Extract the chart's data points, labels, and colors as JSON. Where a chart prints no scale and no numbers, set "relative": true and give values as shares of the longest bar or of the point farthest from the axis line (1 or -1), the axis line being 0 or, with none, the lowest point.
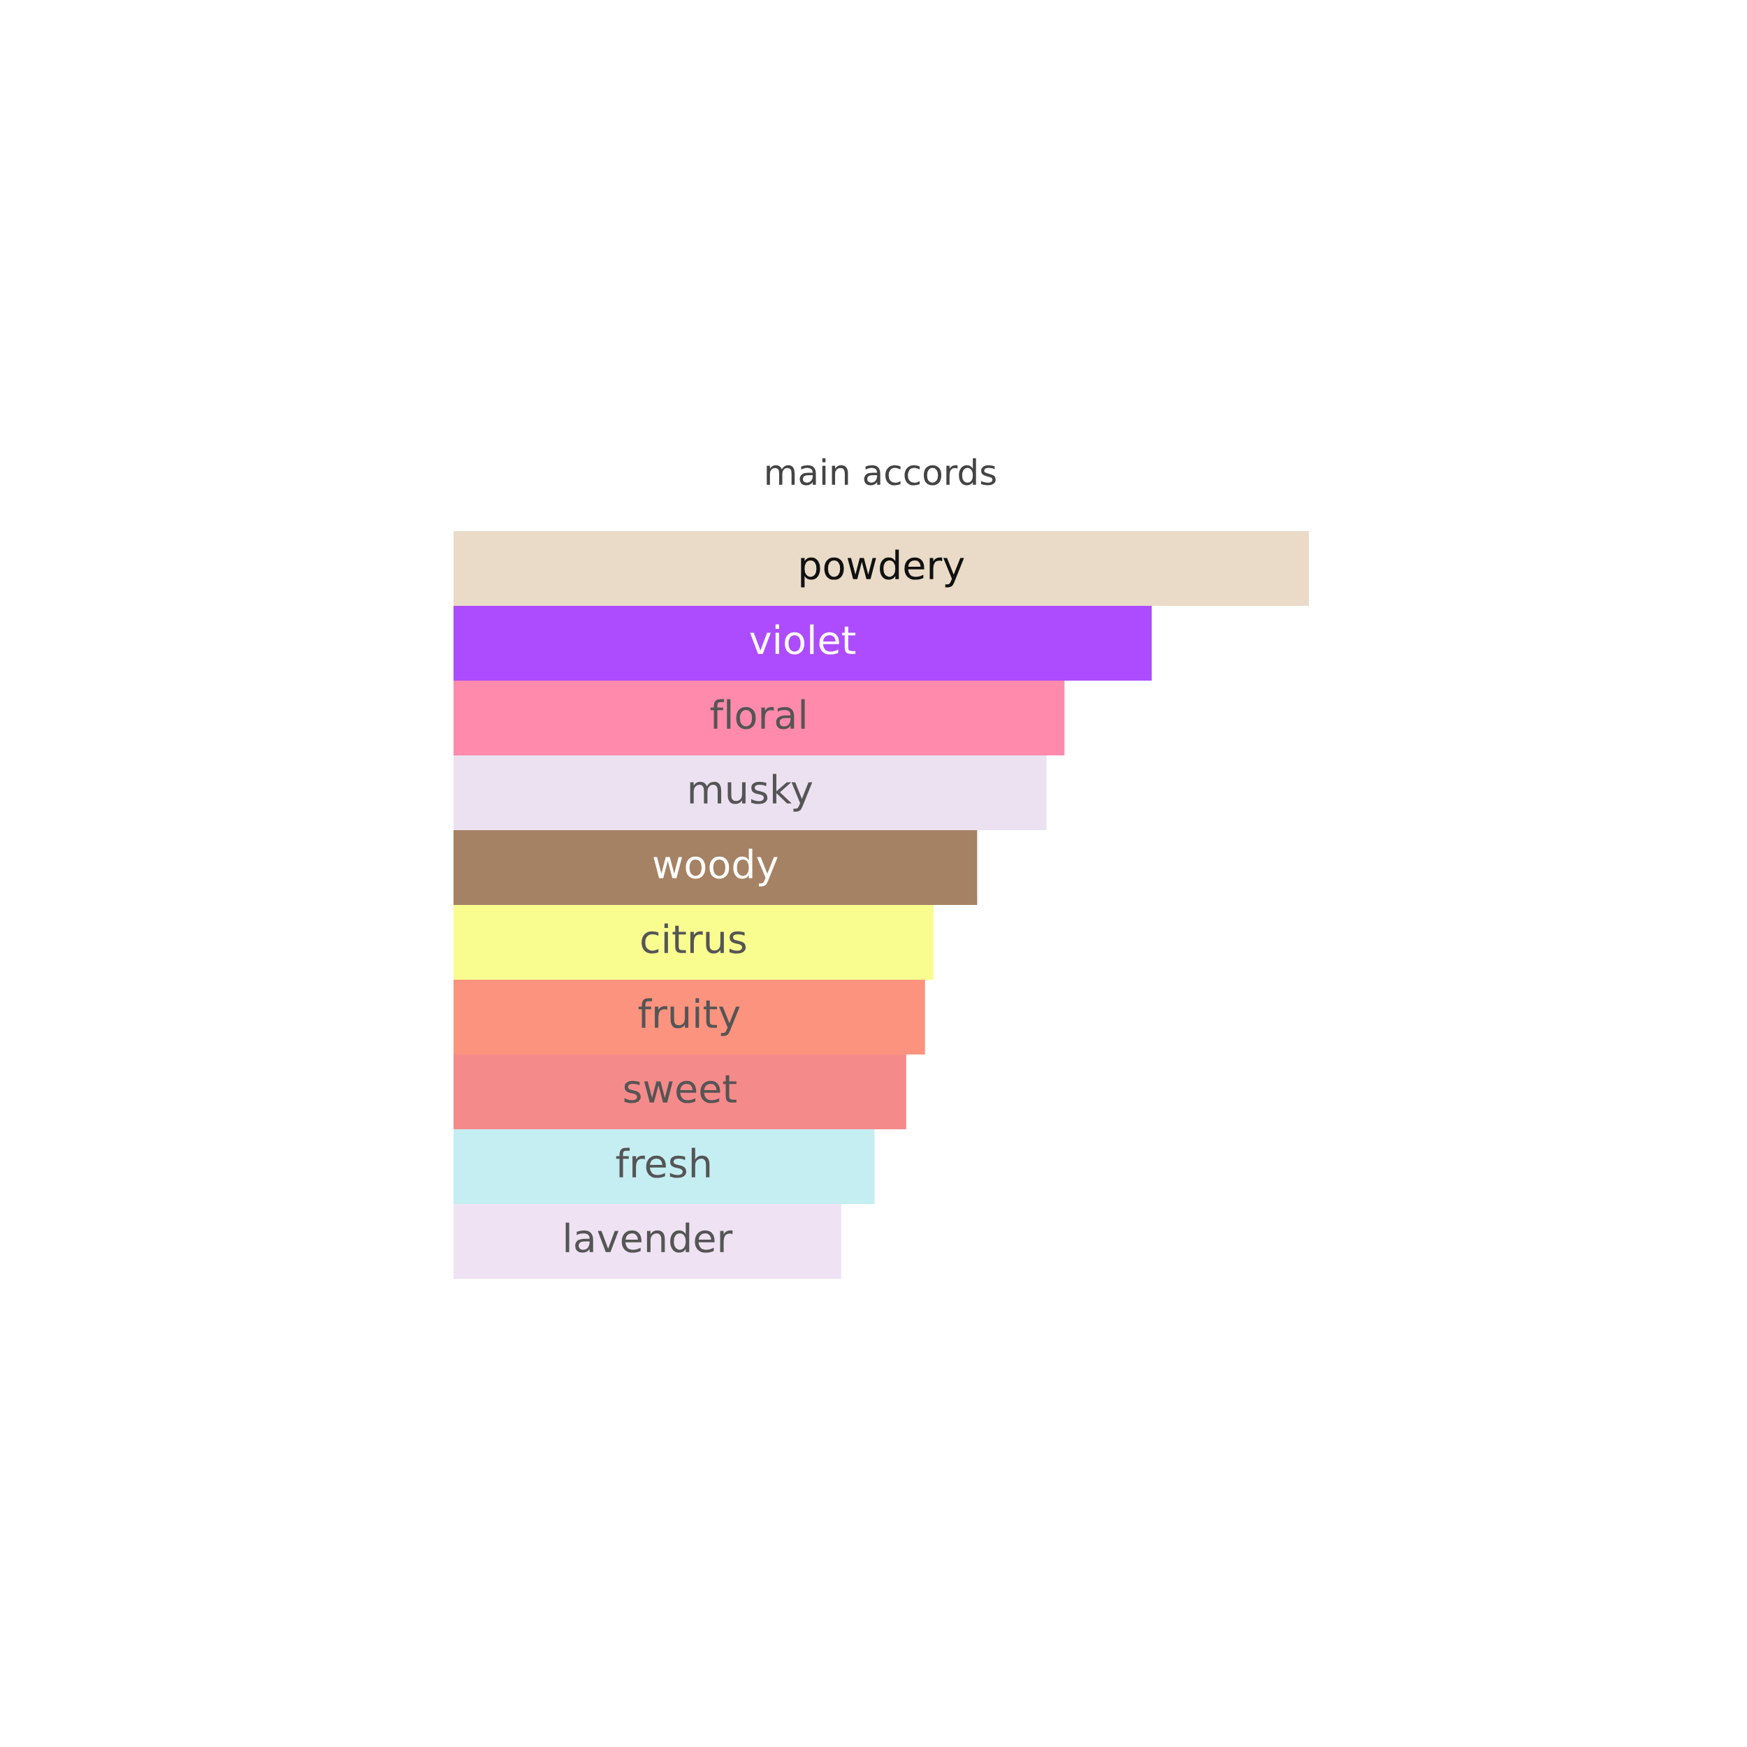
{
  "chart_data": {
    "type": "bar",
    "orientation": "horizontal",
    "relative": true,
    "title": "main accords",
    "categories": [
      "powdery",
      "violet",
      "floral",
      "musky",
      "woody",
      "citrus",
      "fruity",
      "sweet",
      "fresh",
      "lavender"
    ],
    "values": [
      1,
      0.816,
      0.714,
      0.693,
      0.612,
      0.561,
      0.551,
      0.529,
      0.492,
      0.453
    ],
    "colors": [
      "#eadbc8",
      "#ad4cff",
      "#ff8aab",
      "#ece1f1",
      "#a58264",
      "#f9fd8f",
      "#fc937e",
      "#f58a8a",
      "#c5eef2",
      "#efe2f3"
    ],
    "legend": false
  }
}
